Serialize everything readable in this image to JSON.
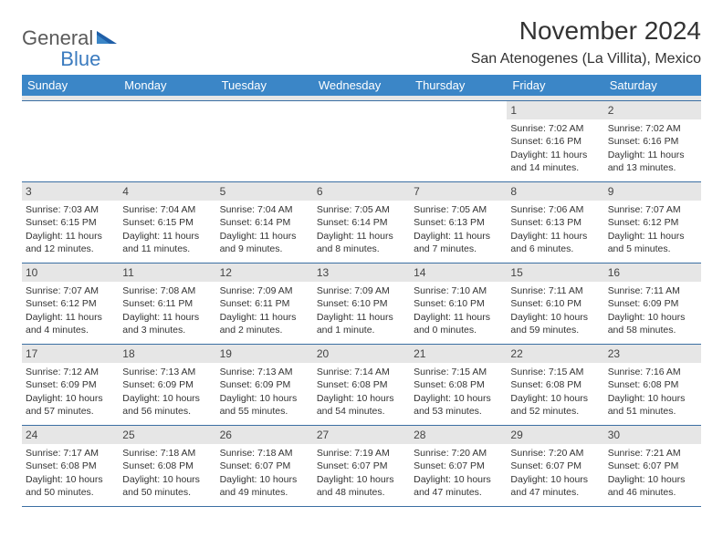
{
  "logo": {
    "text1": "General",
    "text2": "Blue"
  },
  "title": "November 2024",
  "location": "San Atenogenes (La Villita), Mexico",
  "colors": {
    "header_bg": "#3b86c7",
    "header_text": "#ffffff",
    "daynum_bg": "#e6e6e6",
    "border": "#3b6fa3",
    "logo_gray": "#5a5a5a",
    "logo_blue": "#3b7bbf"
  },
  "day_headers": [
    "Sunday",
    "Monday",
    "Tuesday",
    "Wednesday",
    "Thursday",
    "Friday",
    "Saturday"
  ],
  "weeks": [
    [
      {
        "n": "",
        "sunrise": "",
        "sunset": "",
        "daylight": ""
      },
      {
        "n": "",
        "sunrise": "",
        "sunset": "",
        "daylight": ""
      },
      {
        "n": "",
        "sunrise": "",
        "sunset": "",
        "daylight": ""
      },
      {
        "n": "",
        "sunrise": "",
        "sunset": "",
        "daylight": ""
      },
      {
        "n": "",
        "sunrise": "",
        "sunset": "",
        "daylight": ""
      },
      {
        "n": "1",
        "sunrise": "Sunrise: 7:02 AM",
        "sunset": "Sunset: 6:16 PM",
        "daylight": "Daylight: 11 hours and 14 minutes."
      },
      {
        "n": "2",
        "sunrise": "Sunrise: 7:02 AM",
        "sunset": "Sunset: 6:16 PM",
        "daylight": "Daylight: 11 hours and 13 minutes."
      }
    ],
    [
      {
        "n": "3",
        "sunrise": "Sunrise: 7:03 AM",
        "sunset": "Sunset: 6:15 PM",
        "daylight": "Daylight: 11 hours and 12 minutes."
      },
      {
        "n": "4",
        "sunrise": "Sunrise: 7:04 AM",
        "sunset": "Sunset: 6:15 PM",
        "daylight": "Daylight: 11 hours and 11 minutes."
      },
      {
        "n": "5",
        "sunrise": "Sunrise: 7:04 AM",
        "sunset": "Sunset: 6:14 PM",
        "daylight": "Daylight: 11 hours and 9 minutes."
      },
      {
        "n": "6",
        "sunrise": "Sunrise: 7:05 AM",
        "sunset": "Sunset: 6:14 PM",
        "daylight": "Daylight: 11 hours and 8 minutes."
      },
      {
        "n": "7",
        "sunrise": "Sunrise: 7:05 AM",
        "sunset": "Sunset: 6:13 PM",
        "daylight": "Daylight: 11 hours and 7 minutes."
      },
      {
        "n": "8",
        "sunrise": "Sunrise: 7:06 AM",
        "sunset": "Sunset: 6:13 PM",
        "daylight": "Daylight: 11 hours and 6 minutes."
      },
      {
        "n": "9",
        "sunrise": "Sunrise: 7:07 AM",
        "sunset": "Sunset: 6:12 PM",
        "daylight": "Daylight: 11 hours and 5 minutes."
      }
    ],
    [
      {
        "n": "10",
        "sunrise": "Sunrise: 7:07 AM",
        "sunset": "Sunset: 6:12 PM",
        "daylight": "Daylight: 11 hours and 4 minutes."
      },
      {
        "n": "11",
        "sunrise": "Sunrise: 7:08 AM",
        "sunset": "Sunset: 6:11 PM",
        "daylight": "Daylight: 11 hours and 3 minutes."
      },
      {
        "n": "12",
        "sunrise": "Sunrise: 7:09 AM",
        "sunset": "Sunset: 6:11 PM",
        "daylight": "Daylight: 11 hours and 2 minutes."
      },
      {
        "n": "13",
        "sunrise": "Sunrise: 7:09 AM",
        "sunset": "Sunset: 6:10 PM",
        "daylight": "Daylight: 11 hours and 1 minute."
      },
      {
        "n": "14",
        "sunrise": "Sunrise: 7:10 AM",
        "sunset": "Sunset: 6:10 PM",
        "daylight": "Daylight: 11 hours and 0 minutes."
      },
      {
        "n": "15",
        "sunrise": "Sunrise: 7:11 AM",
        "sunset": "Sunset: 6:10 PM",
        "daylight": "Daylight: 10 hours and 59 minutes."
      },
      {
        "n": "16",
        "sunrise": "Sunrise: 7:11 AM",
        "sunset": "Sunset: 6:09 PM",
        "daylight": "Daylight: 10 hours and 58 minutes."
      }
    ],
    [
      {
        "n": "17",
        "sunrise": "Sunrise: 7:12 AM",
        "sunset": "Sunset: 6:09 PM",
        "daylight": "Daylight: 10 hours and 57 minutes."
      },
      {
        "n": "18",
        "sunrise": "Sunrise: 7:13 AM",
        "sunset": "Sunset: 6:09 PM",
        "daylight": "Daylight: 10 hours and 56 minutes."
      },
      {
        "n": "19",
        "sunrise": "Sunrise: 7:13 AM",
        "sunset": "Sunset: 6:09 PM",
        "daylight": "Daylight: 10 hours and 55 minutes."
      },
      {
        "n": "20",
        "sunrise": "Sunrise: 7:14 AM",
        "sunset": "Sunset: 6:08 PM",
        "daylight": "Daylight: 10 hours and 54 minutes."
      },
      {
        "n": "21",
        "sunrise": "Sunrise: 7:15 AM",
        "sunset": "Sunset: 6:08 PM",
        "daylight": "Daylight: 10 hours and 53 minutes."
      },
      {
        "n": "22",
        "sunrise": "Sunrise: 7:15 AM",
        "sunset": "Sunset: 6:08 PM",
        "daylight": "Daylight: 10 hours and 52 minutes."
      },
      {
        "n": "23",
        "sunrise": "Sunrise: 7:16 AM",
        "sunset": "Sunset: 6:08 PM",
        "daylight": "Daylight: 10 hours and 51 minutes."
      }
    ],
    [
      {
        "n": "24",
        "sunrise": "Sunrise: 7:17 AM",
        "sunset": "Sunset: 6:08 PM",
        "daylight": "Daylight: 10 hours and 50 minutes."
      },
      {
        "n": "25",
        "sunrise": "Sunrise: 7:18 AM",
        "sunset": "Sunset: 6:08 PM",
        "daylight": "Daylight: 10 hours and 50 minutes."
      },
      {
        "n": "26",
        "sunrise": "Sunrise: 7:18 AM",
        "sunset": "Sunset: 6:07 PM",
        "daylight": "Daylight: 10 hours and 49 minutes."
      },
      {
        "n": "27",
        "sunrise": "Sunrise: 7:19 AM",
        "sunset": "Sunset: 6:07 PM",
        "daylight": "Daylight: 10 hours and 48 minutes."
      },
      {
        "n": "28",
        "sunrise": "Sunrise: 7:20 AM",
        "sunset": "Sunset: 6:07 PM",
        "daylight": "Daylight: 10 hours and 47 minutes."
      },
      {
        "n": "29",
        "sunrise": "Sunrise: 7:20 AM",
        "sunset": "Sunset: 6:07 PM",
        "daylight": "Daylight: 10 hours and 47 minutes."
      },
      {
        "n": "30",
        "sunrise": "Sunrise: 7:21 AM",
        "sunset": "Sunset: 6:07 PM",
        "daylight": "Daylight: 10 hours and 46 minutes."
      }
    ]
  ]
}
